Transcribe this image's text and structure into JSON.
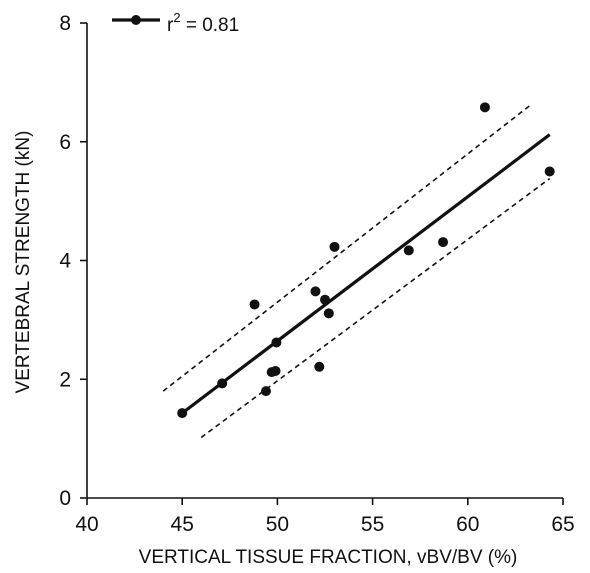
{
  "chart_data": {
    "type": "scatter",
    "xlabel": "VERTICAL TISSUE FRACTION, vBV/BV (%)",
    "ylabel": "VERTEBRAL STRENGTH (kN)",
    "xlim": [
      40,
      65
    ],
    "ylim": [
      0,
      8
    ],
    "x_ticks": [
      "40",
      "45",
      "50",
      "55",
      "60",
      "65"
    ],
    "y_ticks": [
      "0",
      "2",
      "4",
      "6",
      "8"
    ],
    "grid": false,
    "legend": {
      "position": "top-left",
      "label_prefix": "r",
      "label_exponent": "2",
      "label_suffix": " = 0.81"
    },
    "series": [
      {
        "points": [
          {
            "x": 45.0,
            "y": 1.43
          },
          {
            "x": 47.1,
            "y": 1.93
          },
          {
            "x": 48.8,
            "y": 3.26
          },
          {
            "x": 49.4,
            "y": 1.8
          },
          {
            "x": 49.7,
            "y": 2.12
          },
          {
            "x": 49.9,
            "y": 2.14
          },
          {
            "x": 49.95,
            "y": 2.62
          },
          {
            "x": 52.0,
            "y": 3.48
          },
          {
            "x": 52.2,
            "y": 2.21
          },
          {
            "x": 52.5,
            "y": 3.34
          },
          {
            "x": 52.7,
            "y": 3.11
          },
          {
            "x": 53.0,
            "y": 4.23
          },
          {
            "x": 56.9,
            "y": 4.17
          },
          {
            "x": 58.7,
            "y": 4.31
          },
          {
            "x": 60.9,
            "y": 6.58
          },
          {
            "x": 64.3,
            "y": 5.5
          }
        ]
      }
    ],
    "fit_line": {
      "x": [
        45.0,
        64.3
      ],
      "y": [
        1.43,
        6.12
      ]
    },
    "confidence_bands": {
      "upper": {
        "x": [
          44.0,
          63.3
        ],
        "y": [
          1.8,
          6.62
        ]
      },
      "lower": {
        "x": [
          46.0,
          64.3
        ],
        "y": [
          1.02,
          5.38
        ]
      }
    }
  }
}
